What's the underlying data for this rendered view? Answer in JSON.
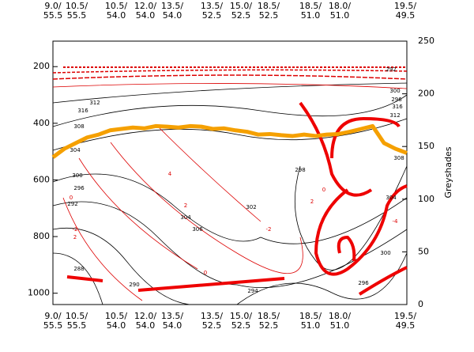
{
  "chart_data": {
    "type": "contour",
    "x_labels_top": [
      "9.0/",
      "10.5/",
      "10.5/",
      "12.0/",
      "13.5/",
      "13.5/",
      "15.0/",
      "18.5/",
      "18.5/",
      "18.0/",
      "19.5/"
    ],
    "x_labels_bottom": [
      "55.5",
      "55.5",
      "54.0",
      "54.0",
      "54.0",
      "52.5",
      "52.5",
      "52.5",
      "51.0",
      "51.0",
      "49.5"
    ],
    "ylim": [
      1040,
      110
    ],
    "yticks": [
      200,
      400,
      600,
      800,
      1000
    ],
    "y2label": "Greyshades",
    "y2lim": [
      0,
      250
    ],
    "y2ticks": [
      0,
      50,
      100,
      150,
      200,
      250
    ],
    "series": [
      {
        "color": "#f5a000",
        "values": [
          520,
          490,
          470,
          450,
          440,
          425,
          420,
          415,
          418,
          410,
          412,
          415,
          410,
          412,
          420,
          418,
          425,
          430,
          440,
          438,
          442,
          445,
          440,
          445,
          440,
          438,
          430,
          420,
          410,
          470,
          490,
          505
        ]
      }
    ],
    "black_contour_labels": [
      "316",
      "312",
      "308",
      "304",
      "300",
      "296",
      "292",
      "288",
      "290",
      "294",
      "298",
      "302",
      "306",
      "304",
      "300",
      "296",
      "316",
      "312",
      "308",
      "304",
      "300",
      "296",
      "292"
    ],
    "red_contour_labels": [
      "0",
      "-2",
      "4",
      "2",
      "0",
      "-2",
      "2",
      "0",
      "-4",
      "2"
    ]
  }
}
